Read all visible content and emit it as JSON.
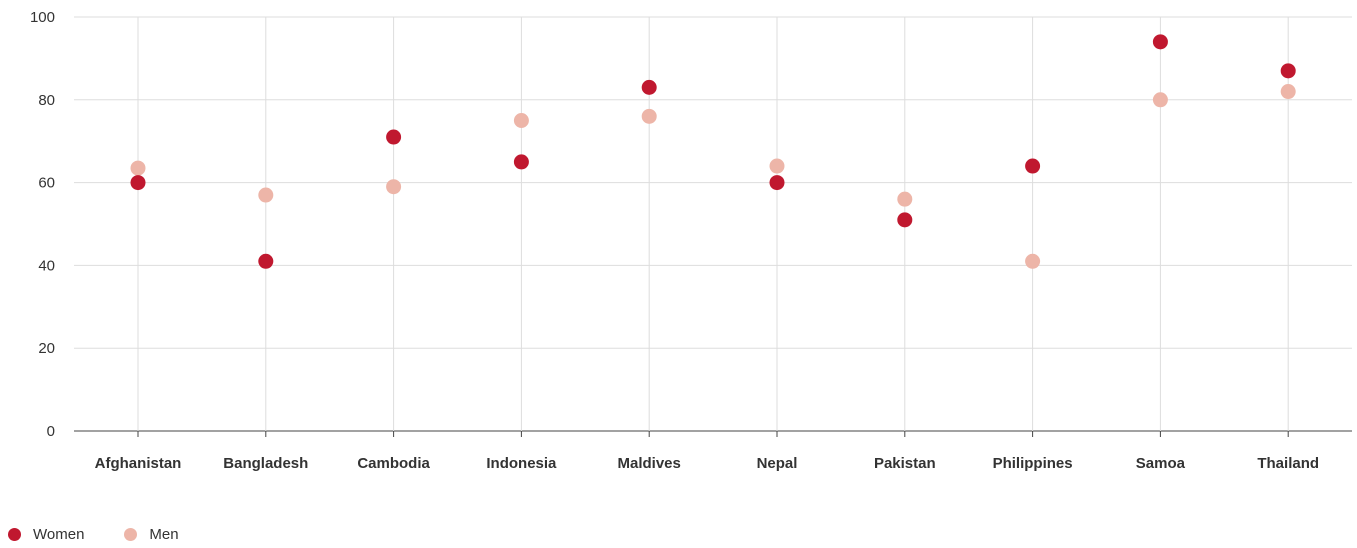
{
  "colors": {
    "women": "#C0182F",
    "men": "#EDB5A8",
    "grid": "#DDDDDD",
    "axis": "#444444"
  },
  "legend": {
    "women_label": "Women",
    "men_label": "Men"
  },
  "chart_data": {
    "type": "scatter",
    "categories": [
      "Afghanistan",
      "Bangladesh",
      "Cambodia",
      "Indonesia",
      "Maldives",
      "Nepal",
      "Pakistan",
      "Philippines",
      "Samoa",
      "Thailand"
    ],
    "series": [
      {
        "name": "Women",
        "values": [
          60,
          41,
          71,
          65,
          83,
          60,
          51,
          64,
          94,
          87
        ]
      },
      {
        "name": "Men",
        "values": [
          63.5,
          57,
          59,
          75,
          76,
          64,
          56,
          41,
          80,
          82
        ]
      }
    ],
    "yticks": [
      "0",
      "20",
      "40",
      "60",
      "80",
      "100"
    ],
    "ylim": [
      0,
      100
    ],
    "grid": true,
    "legend_position": "bottom-left",
    "title": "",
    "xlabel": "",
    "ylabel": ""
  }
}
